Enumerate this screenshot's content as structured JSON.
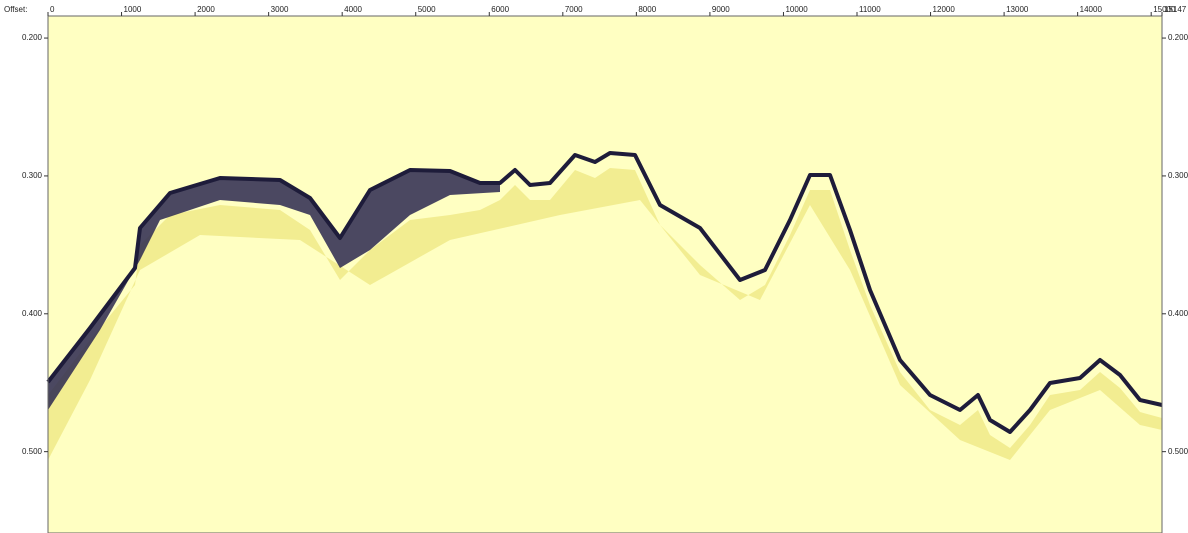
{
  "axes": {
    "x": {
      "label": "Offset:",
      "lim": [
        0,
        15147
      ],
      "ticks": [
        0,
        1000,
        2000,
        3000,
        4000,
        5000,
        6000,
        7000,
        8000,
        9000,
        10000,
        11000,
        12000,
        13000,
        14000,
        15000,
        15147
      ]
    },
    "y": {
      "lim": [
        0.184,
        0.559
      ],
      "ticks": [
        {
          "value": 0.2,
          "label": "0.200"
        },
        {
          "value": 0.3,
          "label": "0.300"
        },
        {
          "value": 0.4,
          "label": "0.400"
        },
        {
          "value": 0.5,
          "label": "0.500"
        }
      ]
    }
  }
}
